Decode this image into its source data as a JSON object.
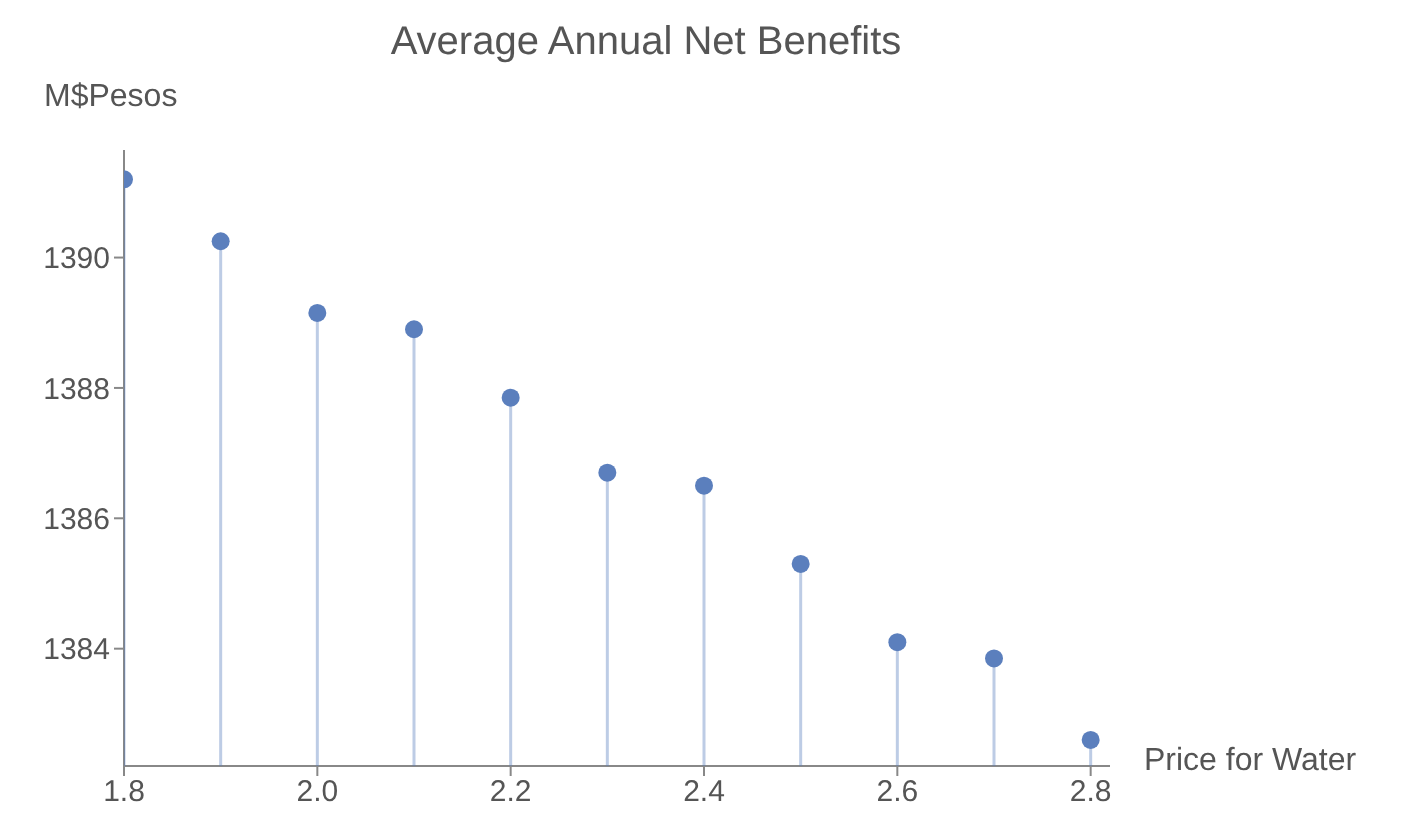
{
  "chart_data": {
    "type": "lollipop",
    "title": "Average Annual Net Benefits",
    "xlabel": "Price for Water",
    "ylabel": "M$Pesos",
    "x": [
      1.8,
      1.9,
      2.0,
      2.1,
      2.2,
      2.3,
      2.4,
      2.5,
      2.6,
      2.7,
      2.8
    ],
    "series": [
      {
        "color": "#5b7fbd",
        "values": [
          1391.2,
          1390.25,
          1389.15,
          1388.9,
          1387.85,
          1386.7,
          1386.5,
          1385.3,
          1384.1,
          1383.85,
          1382.6
        ]
      }
    ],
    "xlim": [
      1.8,
      2.82
    ],
    "ylim": [
      1382.2,
      1391.65
    ],
    "xticks": [
      {
        "value": 1.8,
        "label": "1.8"
      },
      {
        "value": 2.0,
        "label": "2.0"
      },
      {
        "value": 2.2,
        "label": "2.2"
      },
      {
        "value": 2.4,
        "label": "2.4"
      },
      {
        "value": 2.6,
        "label": "2.6"
      },
      {
        "value": 2.8,
        "label": "2.8"
      }
    ],
    "yticks": [
      1384,
      1386,
      1388,
      1390
    ],
    "marker": "circle"
  }
}
